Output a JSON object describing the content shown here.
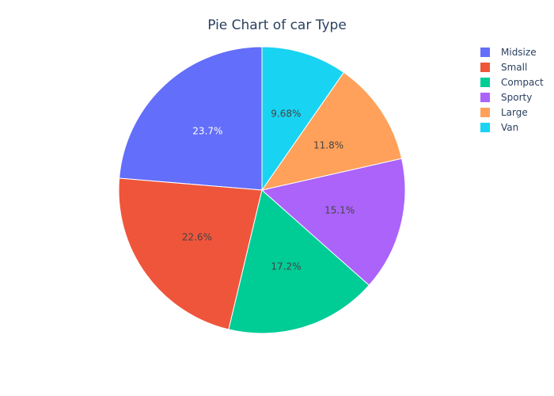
{
  "chart_data": {
    "type": "pie",
    "title": "Pie Chart of car Type",
    "labels": [
      "Midsize",
      "Small",
      "Compact",
      "Sporty",
      "Large",
      "Van"
    ],
    "values": [
      23.7,
      22.6,
      17.2,
      15.1,
      11.8,
      9.68
    ],
    "value_labels": [
      "23.7%",
      "22.6%",
      "17.2%",
      "15.1%",
      "11.8%",
      "9.68%"
    ],
    "colors": [
      "#636efa",
      "#ef553b",
      "#00cc96",
      "#ab63fa",
      "#ffa15a",
      "#19d3f3"
    ],
    "label_colors": [
      "#ffffff",
      "#444444",
      "#444444",
      "#444444",
      "#444444",
      "#444444"
    ],
    "direction": "counterclockwise",
    "legend": {
      "placement": "top-right",
      "order": [
        "Midsize",
        "Small",
        "Compact",
        "Sporty",
        "Large",
        "Van"
      ]
    }
  }
}
